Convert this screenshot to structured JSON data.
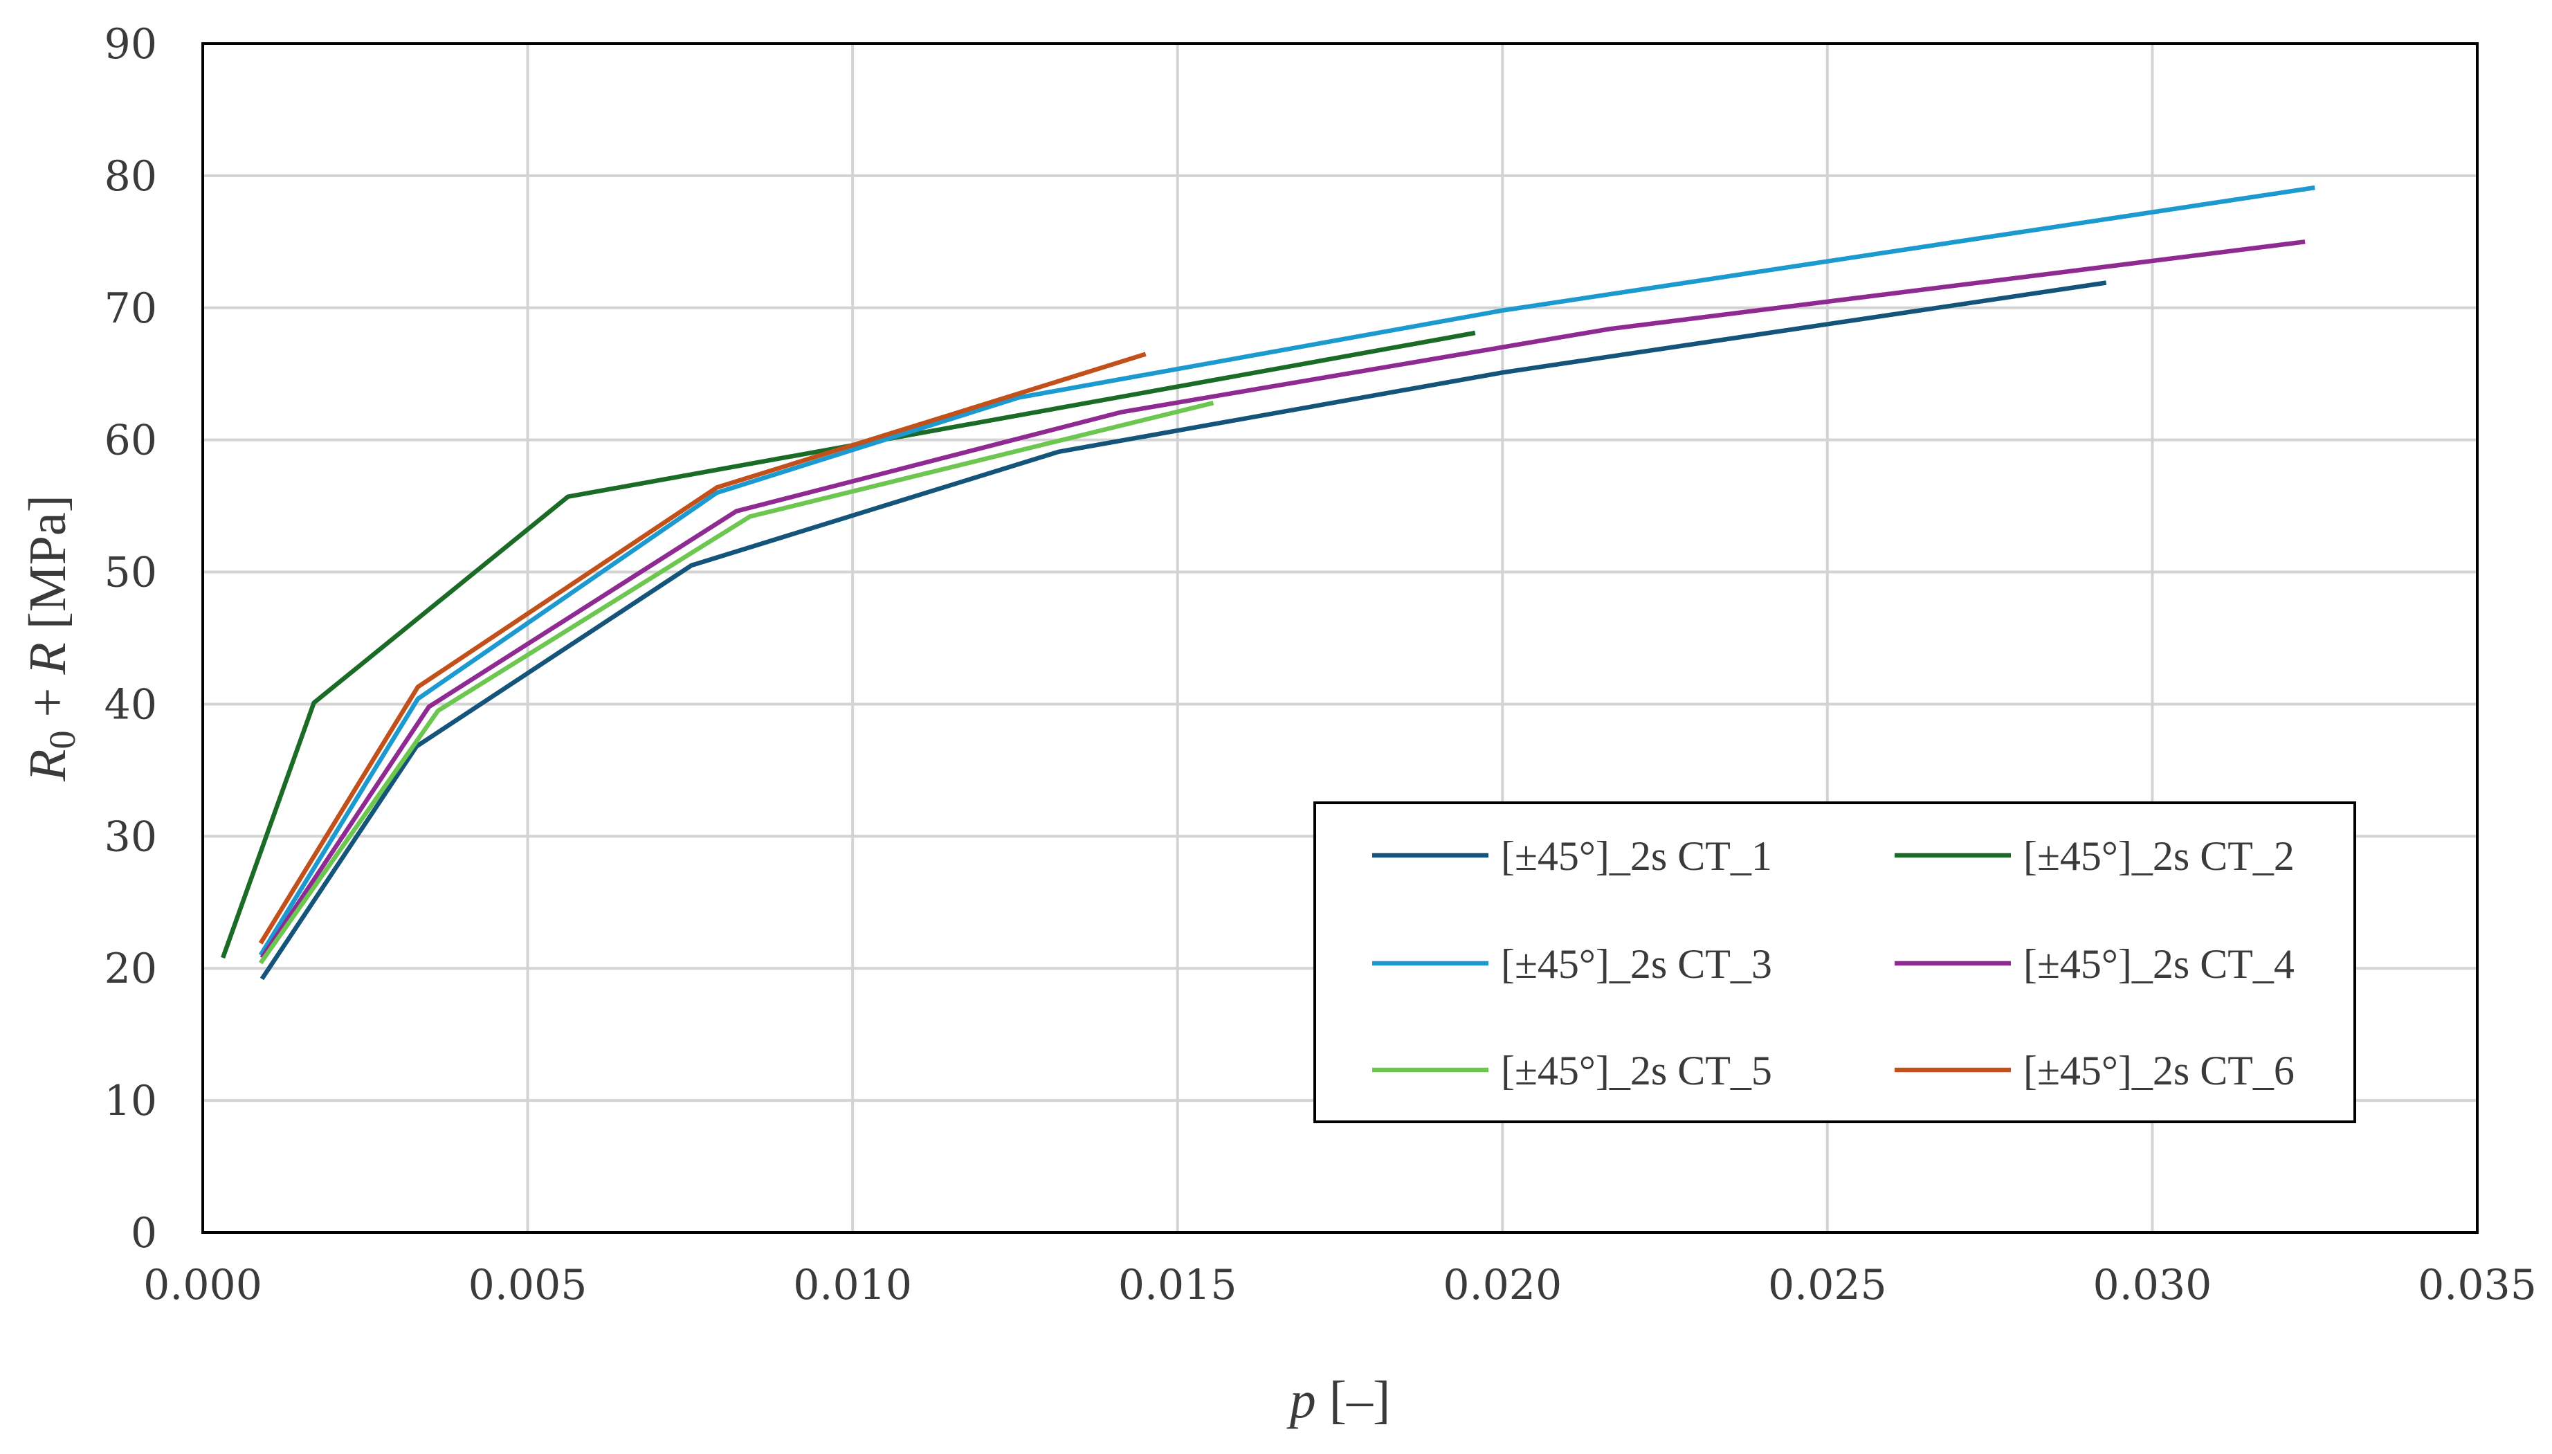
{
  "chart_data": {
    "type": "line",
    "title": "",
    "xlabel": {
      "var": "p",
      "unit": " [–]"
    },
    "ylabel": {
      "var": "R",
      "sub": "0",
      "mid": " + ",
      "var2": "R",
      "unit": " [MPa]"
    },
    "xlim": [
      0,
      0.035
    ],
    "ylim": [
      0,
      90
    ],
    "x_ticks": [
      0.0,
      0.005,
      0.01,
      0.015,
      0.02,
      0.025,
      0.03,
      0.035
    ],
    "x_tick_labels": [
      "0.000",
      "0.005",
      "0.010",
      "0.015",
      "0.020",
      "0.025",
      "0.030",
      "0.035"
    ],
    "y_ticks": [
      0,
      10,
      20,
      30,
      40,
      50,
      60,
      70,
      80,
      90
    ],
    "y_tick_labels": [
      "0",
      "10",
      "20",
      "30",
      "40",
      "50",
      "60",
      "70",
      "80",
      "90"
    ],
    "grid": true,
    "legend_position": "bottom-right",
    "series": [
      {
        "name": "[±45°]_2s CT_1",
        "color": "#14547a",
        "x": [
          0.00091,
          0.00329,
          0.00752,
          0.01317,
          0.02,
          0.02929
        ],
        "y": [
          19.2,
          36.8,
          50.5,
          59.1,
          65.1,
          71.9
        ]
      },
      {
        "name": "[±45°]_2s CT_2",
        "color": "#1a6b25",
        "x": [
          0.00031,
          0.00171,
          0.00562,
          0.01958
        ],
        "y": [
          20.8,
          40.1,
          55.7,
          68.1
        ]
      },
      {
        "name": "[±45°]_2s CT_3",
        "color": "#1c9ad0",
        "x": [
          0.00089,
          0.00331,
          0.00791,
          0.01255,
          0.02,
          0.0325
        ],
        "y": [
          21.0,
          40.4,
          56.0,
          63.2,
          69.8,
          79.1
        ]
      },
      {
        "name": "[±45°]_2s CT_4",
        "color": "#8f2a92",
        "x": [
          0.00091,
          0.00348,
          0.00821,
          0.01413,
          0.02165,
          0.03235
        ],
        "y": [
          20.8,
          39.8,
          54.6,
          62.1,
          68.4,
          75.0
        ]
      },
      {
        "name": "[±45°]_2s CT_5",
        "color": "#6cc650",
        "x": [
          0.00089,
          0.00362,
          0.00842,
          0.01555
        ],
        "y": [
          20.4,
          39.5,
          54.2,
          62.8
        ]
      },
      {
        "name": "[±45°]_2s CT_6",
        "color": "#c1501a",
        "x": [
          0.00089,
          0.00331,
          0.00791,
          0.01451
        ],
        "y": [
          21.9,
          41.3,
          56.4,
          66.5
        ]
      }
    ]
  }
}
